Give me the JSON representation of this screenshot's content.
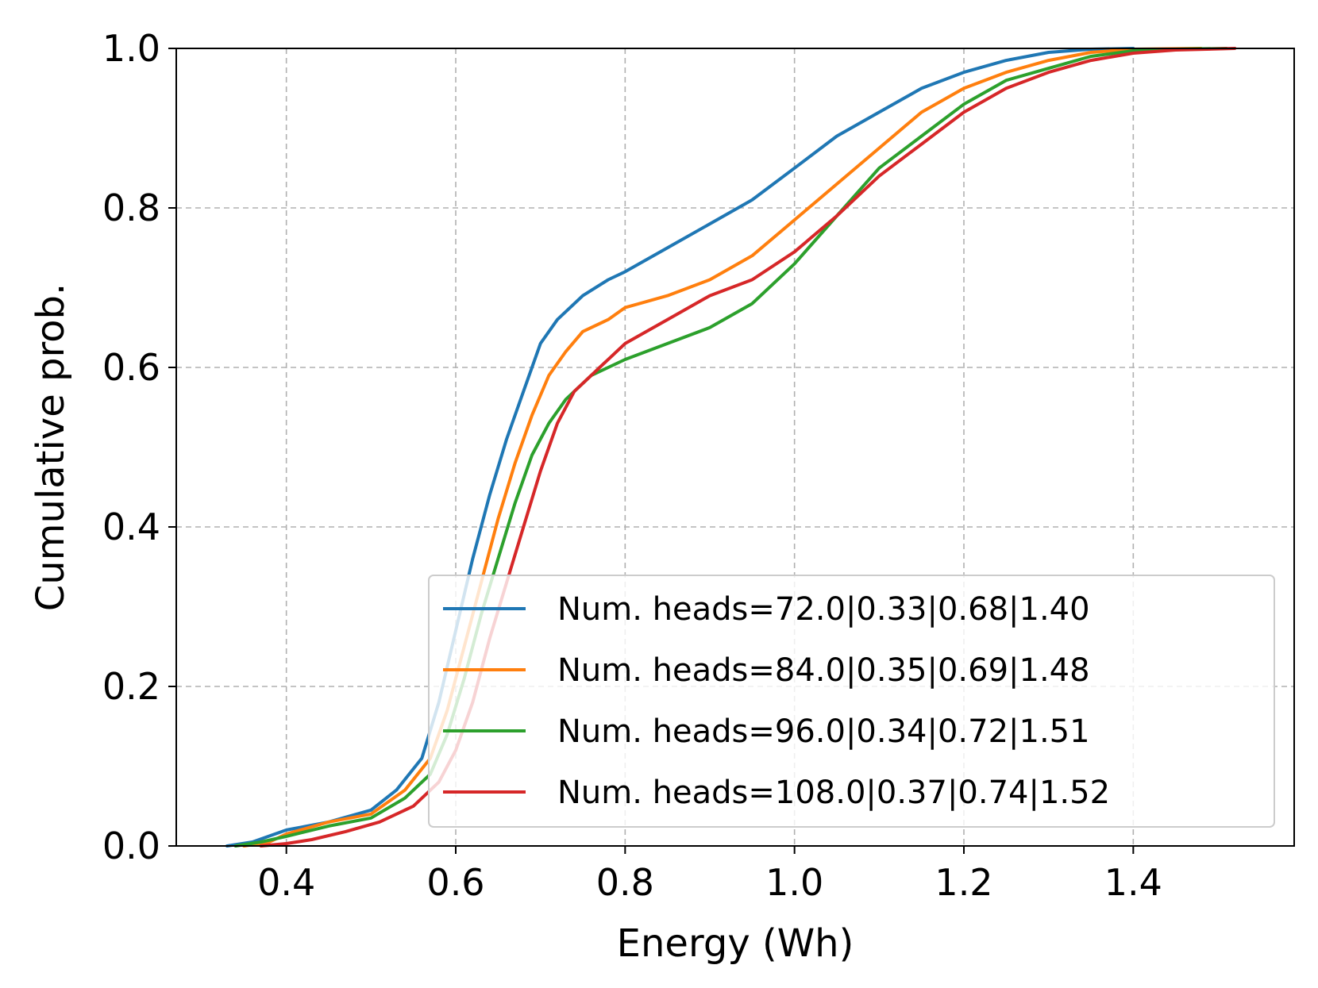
{
  "chart_data": {
    "type": "line",
    "title": "",
    "xlabel": "Energy (Wh)",
    "ylabel": "Cumulative prob.",
    "xlim": [
      0.27,
      1.59
    ],
    "ylim": [
      0.0,
      1.0
    ],
    "xticks": [
      0.4,
      0.6,
      0.8,
      1.0,
      1.2,
      1.4
    ],
    "xtick_labels": [
      "0.4",
      "0.6",
      "0.8",
      "1.0",
      "1.2",
      "1.4"
    ],
    "yticks": [
      0.0,
      0.2,
      0.4,
      0.6,
      0.8,
      1.0
    ],
    "ytick_labels": [
      "0.0",
      "0.2",
      "0.4",
      "0.6",
      "0.8",
      "1.0"
    ],
    "grid": true,
    "legend_position": "lower-right",
    "series": [
      {
        "name": "Num. heads=72.0|0.33|0.68|1.40",
        "color": "#1f77b4",
        "x": [
          0.33,
          0.36,
          0.4,
          0.45,
          0.5,
          0.53,
          0.56,
          0.58,
          0.6,
          0.62,
          0.64,
          0.66,
          0.68,
          0.7,
          0.72,
          0.75,
          0.78,
          0.8,
          0.85,
          0.9,
          0.95,
          1.0,
          1.05,
          1.1,
          1.15,
          1.2,
          1.25,
          1.3,
          1.35,
          1.4
        ],
        "y": [
          0.0,
          0.005,
          0.02,
          0.03,
          0.045,
          0.07,
          0.11,
          0.18,
          0.27,
          0.36,
          0.44,
          0.51,
          0.57,
          0.63,
          0.66,
          0.69,
          0.71,
          0.72,
          0.75,
          0.78,
          0.81,
          0.85,
          0.89,
          0.92,
          0.95,
          0.97,
          0.985,
          0.995,
          0.999,
          1.0
        ]
      },
      {
        "name": "Num. heads=84.0|0.35|0.69|1.48",
        "color": "#ff7f0e",
        "x": [
          0.35,
          0.38,
          0.4,
          0.45,
          0.5,
          0.54,
          0.57,
          0.59,
          0.61,
          0.63,
          0.65,
          0.67,
          0.69,
          0.71,
          0.73,
          0.75,
          0.78,
          0.8,
          0.85,
          0.9,
          0.95,
          1.0,
          1.05,
          1.1,
          1.15,
          1.2,
          1.25,
          1.3,
          1.35,
          1.4,
          1.48
        ],
        "y": [
          0.0,
          0.005,
          0.015,
          0.03,
          0.04,
          0.07,
          0.11,
          0.17,
          0.25,
          0.33,
          0.41,
          0.48,
          0.54,
          0.59,
          0.62,
          0.645,
          0.66,
          0.675,
          0.69,
          0.71,
          0.74,
          0.785,
          0.83,
          0.875,
          0.92,
          0.95,
          0.97,
          0.985,
          0.995,
          0.999,
          1.0
        ]
      },
      {
        "name": "Num. heads=96.0|0.34|0.72|1.51",
        "color": "#2ca02c",
        "x": [
          0.34,
          0.37,
          0.4,
          0.45,
          0.5,
          0.54,
          0.57,
          0.59,
          0.61,
          0.63,
          0.65,
          0.67,
          0.69,
          0.71,
          0.73,
          0.76,
          0.8,
          0.85,
          0.9,
          0.95,
          1.0,
          1.05,
          1.1,
          1.15,
          1.2,
          1.25,
          1.3,
          1.35,
          1.4,
          1.45,
          1.51
        ],
        "y": [
          0.0,
          0.005,
          0.012,
          0.025,
          0.035,
          0.06,
          0.09,
          0.14,
          0.21,
          0.29,
          0.36,
          0.43,
          0.49,
          0.53,
          0.56,
          0.59,
          0.61,
          0.63,
          0.65,
          0.68,
          0.73,
          0.79,
          0.85,
          0.89,
          0.93,
          0.96,
          0.975,
          0.99,
          0.997,
          0.999,
          1.0
        ]
      },
      {
        "name": "Num. heads=108.0|0.37|0.74|1.52",
        "color": "#d62728",
        "x": [
          0.37,
          0.4,
          0.43,
          0.47,
          0.51,
          0.55,
          0.58,
          0.6,
          0.62,
          0.64,
          0.66,
          0.68,
          0.7,
          0.72,
          0.74,
          0.77,
          0.8,
          0.85,
          0.9,
          0.95,
          1.0,
          1.05,
          1.1,
          1.15,
          1.2,
          1.25,
          1.3,
          1.35,
          1.4,
          1.45,
          1.52
        ],
        "y": [
          0.0,
          0.003,
          0.008,
          0.018,
          0.03,
          0.05,
          0.08,
          0.12,
          0.18,
          0.26,
          0.33,
          0.4,
          0.47,
          0.53,
          0.57,
          0.6,
          0.63,
          0.66,
          0.69,
          0.71,
          0.745,
          0.79,
          0.84,
          0.88,
          0.92,
          0.95,
          0.97,
          0.985,
          0.994,
          0.998,
          1.0
        ]
      }
    ]
  }
}
